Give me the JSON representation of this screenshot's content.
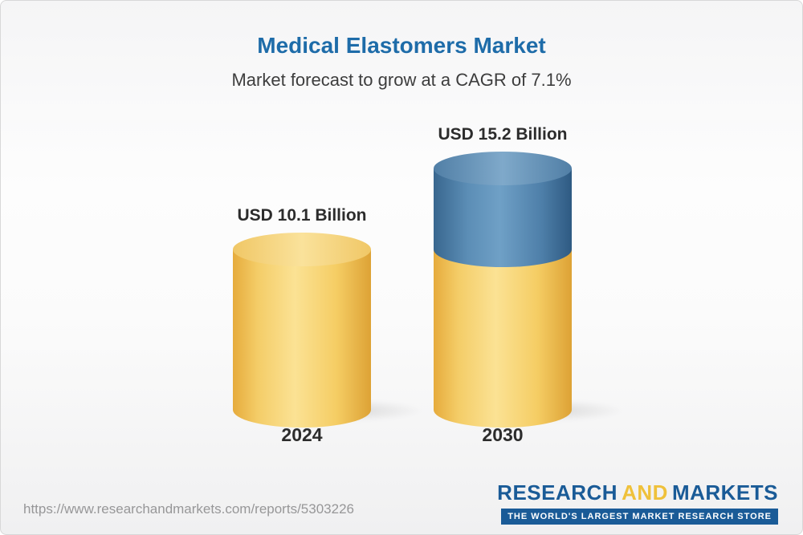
{
  "header": {
    "title": "Medical Elastomers Market",
    "subtitle": "Market forecast to grow at a CAGR of 7.1%"
  },
  "chart_data": {
    "type": "bar",
    "style": "3d-cylinder",
    "title": "Medical Elastomers Market",
    "subtitle": "Market forecast to grow at a CAGR of 7.1%",
    "unit": "USD Billion",
    "cagr": "7.1%",
    "categories": [
      "2024",
      "2030"
    ],
    "values": [
      10.1,
      15.2
    ],
    "value_labels": [
      "USD 10.1 Billion",
      "USD 15.2 Billion"
    ],
    "grid": "off",
    "legend": "none",
    "colors": {
      "bar_2024": "#F5CC63",
      "bar_2030_base": "#F5CC63",
      "bar_2030_growth": "#4E7FA9",
      "title_accent": "#1E6CA9"
    }
  },
  "footer": {
    "url": "https://www.researchandmarkets.com/reports/5303226",
    "logo": {
      "research": "RESEARCH",
      "and": "AND",
      "markets": "MARKETS",
      "tagline": "THE WORLD'S LARGEST MARKET RESEARCH STORE"
    }
  }
}
